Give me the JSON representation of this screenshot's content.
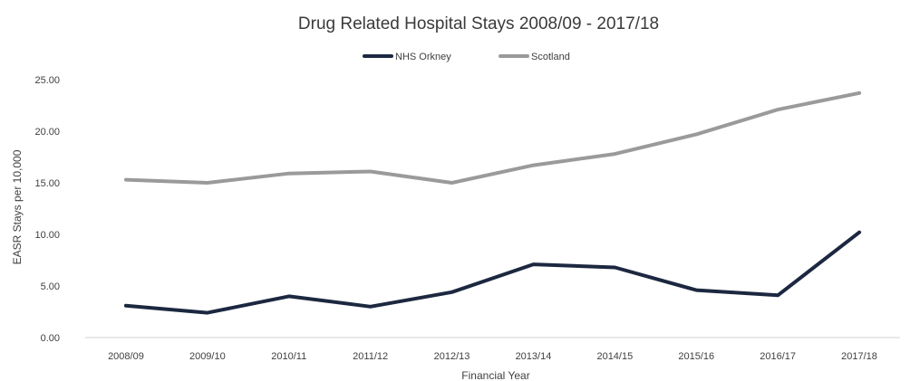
{
  "chart_data": {
    "type": "line",
    "title": "Drug Related Hospital Stays 2008/09 - 2017/18",
    "xlabel": "Financial Year",
    "ylabel": "EASR Stays per 10,000",
    "categories": [
      "2008/09",
      "2009/10",
      "2010/11",
      "2011/12",
      "2012/13",
      "2013/14",
      "2014/15",
      "2015/16",
      "2016/17",
      "2017/18"
    ],
    "ylim": [
      0,
      25
    ],
    "yticks": [
      "0.00",
      "5.00",
      "10.00",
      "15.00",
      "20.00",
      "25.00"
    ],
    "legend_position": "top",
    "grid": false,
    "series": [
      {
        "name": "NHS Orkney",
        "color": "#1c2840",
        "values": [
          3.1,
          2.4,
          4.0,
          3.0,
          4.4,
          7.1,
          6.8,
          4.6,
          4.1,
          10.2
        ]
      },
      {
        "name": "Scotland",
        "color": "#9a9a9a",
        "values": [
          15.3,
          15.0,
          15.9,
          16.1,
          15.0,
          16.7,
          17.8,
          19.7,
          22.1,
          23.7
        ]
      }
    ]
  }
}
